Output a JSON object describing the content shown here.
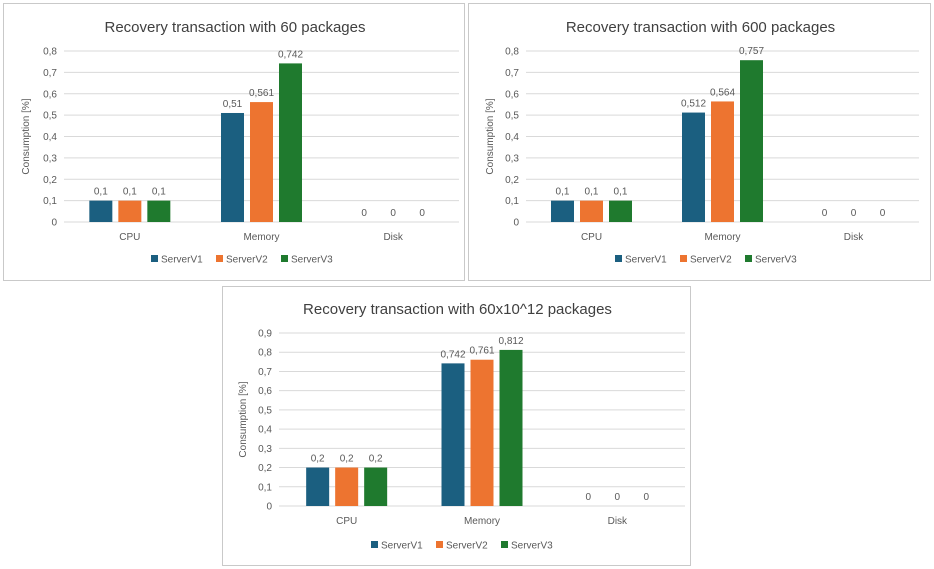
{
  "colors": {
    "series": [
      "#1b5f80",
      "#ed7430",
      "#1f7a2e"
    ],
    "grid": "#d9d9d9",
    "axis_text": "#595959",
    "title_text": "#404040"
  },
  "chart_data": [
    {
      "type": "bar",
      "title": "Recovery transaction with 60 packages",
      "xlabel": "",
      "ylabel": "Consumption [%]",
      "categories": [
        "CPU",
        "Memory",
        "Disk"
      ],
      "series": [
        {
          "name": "ServerV1",
          "values": [
            0.1,
            0.51,
            0
          ],
          "labels": [
            "0,1",
            "0,51",
            "0"
          ]
        },
        {
          "name": "ServerV2",
          "values": [
            0.1,
            0.561,
            0
          ],
          "labels": [
            "0,1",
            "0,561",
            "0"
          ]
        },
        {
          "name": "ServerV3",
          "values": [
            0.1,
            0.742,
            0
          ],
          "labels": [
            "0,1",
            "0,742",
            "0"
          ]
        }
      ],
      "ylim": [
        0,
        0.8
      ],
      "yticks": [
        "0",
        "0,1",
        "0,2",
        "0,3",
        "0,4",
        "0,5",
        "0,6",
        "0,7",
        "0,8"
      ],
      "grid": true,
      "legend": "bottom"
    },
    {
      "type": "bar",
      "title": "Recovery transaction with 600 packages",
      "xlabel": "",
      "ylabel": "Consumption [%]",
      "categories": [
        "CPU",
        "Memory",
        "Disk"
      ],
      "series": [
        {
          "name": "ServerV1",
          "values": [
            0.1,
            0.512,
            0
          ],
          "labels": [
            "0,1",
            "0,512",
            "0"
          ]
        },
        {
          "name": "ServerV2",
          "values": [
            0.1,
            0.564,
            0
          ],
          "labels": [
            "0,1",
            "0,564",
            "0"
          ]
        },
        {
          "name": "ServerV3",
          "values": [
            0.1,
            0.757,
            0
          ],
          "labels": [
            "0,1",
            "0,757",
            "0"
          ]
        }
      ],
      "ylim": [
        0,
        0.8
      ],
      "yticks": [
        "0",
        "0,1",
        "0,2",
        "0,3",
        "0,4",
        "0,5",
        "0,6",
        "0,7",
        "0,8"
      ],
      "grid": true,
      "legend": "bottom"
    },
    {
      "type": "bar",
      "title": "Recovery transaction with 60x10^12 packages",
      "xlabel": "",
      "ylabel": "Consumption [%]",
      "categories": [
        "CPU",
        "Memory",
        "Disk"
      ],
      "series": [
        {
          "name": "ServerV1",
          "values": [
            0.2,
            0.742,
            0
          ],
          "labels": [
            "0,2",
            "0,742",
            "0"
          ]
        },
        {
          "name": "ServerV2",
          "values": [
            0.2,
            0.761,
            0
          ],
          "labels": [
            "0,2",
            "0,761",
            "0"
          ]
        },
        {
          "name": "ServerV3",
          "values": [
            0.2,
            0.812,
            0
          ],
          "labels": [
            "0,2",
            "0,812",
            "0"
          ]
        }
      ],
      "ylim": [
        0,
        0.9
      ],
      "yticks": [
        "0",
        "0,1",
        "0,2",
        "0,3",
        "0,4",
        "0,5",
        "0,6",
        "0,7",
        "0,8",
        "0,9"
      ],
      "grid": true,
      "legend": "bottom"
    }
  ]
}
